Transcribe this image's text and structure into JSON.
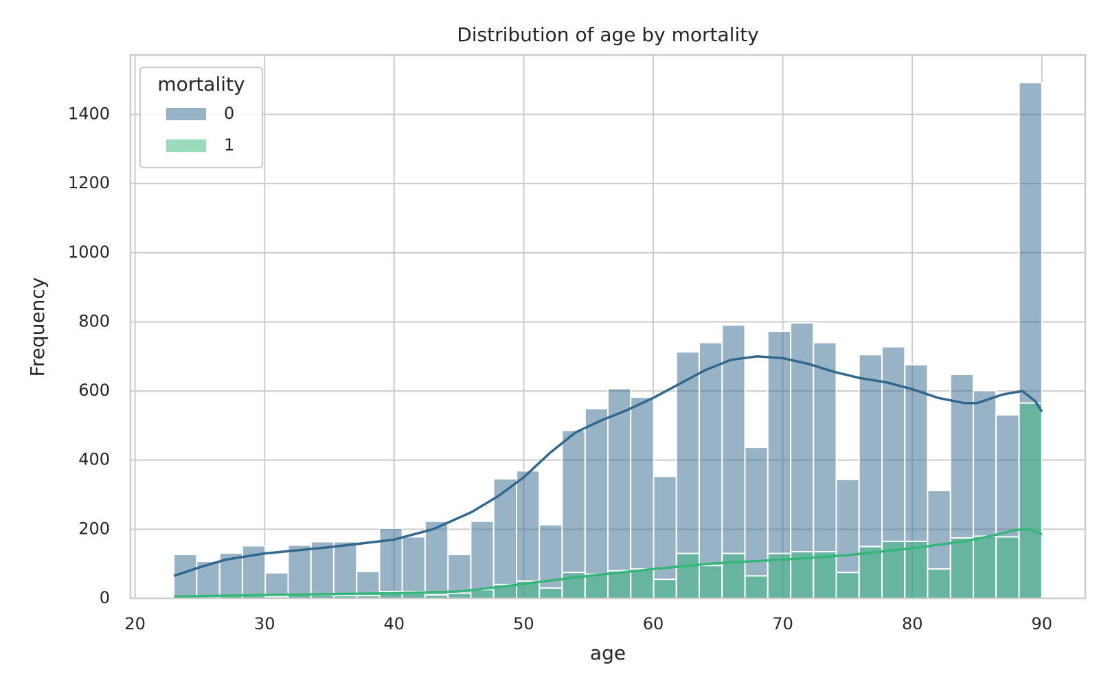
{
  "chart_data": {
    "type": "histogram",
    "title": "Distribution of age by mortality",
    "x_label": "age",
    "y_label": "Frequency",
    "legend_title": "mortality",
    "legend_position": "upper left",
    "grid": true,
    "xlim": [
      19.65,
      93.35
    ],
    "ylim": [
      0,
      1572
    ],
    "xticks": [
      20,
      30,
      40,
      50,
      60,
      70,
      80,
      90
    ],
    "yticks": [
      0,
      200,
      400,
      600,
      800,
      1000,
      1200,
      1400
    ],
    "bins": [
      23,
      24.76,
      26.53,
      28.29,
      30.05,
      31.82,
      33.58,
      35.34,
      37.11,
      38.87,
      40.63,
      42.39,
      44.16,
      45.92,
      47.68,
      49.45,
      51.21,
      52.97,
      54.74,
      56.5,
      58.26,
      60.03,
      61.79,
      63.55,
      65.32,
      67.08,
      68.84,
      70.61,
      72.37,
      74.13,
      75.89,
      77.66,
      79.42,
      81.18,
      82.95,
      84.71,
      86.47,
      88.24,
      90
    ],
    "series": [
      {
        "name": "0",
        "color": "#31688e",
        "values": [
          127,
          107,
          131,
          152,
          74,
          154,
          164,
          164,
          78,
          203,
          178,
          223,
          127,
          223,
          346,
          369,
          213,
          486,
          549,
          607,
          582,
          353,
          713,
          740,
          791,
          437,
          773,
          797,
          740,
          344,
          705,
          728,
          676,
          312,
          648,
          601,
          531,
          1492
        ],
        "kde": {
          "x": [
            23,
            25,
            27,
            30,
            35,
            40,
            43,
            46,
            48,
            50,
            52,
            54,
            56,
            58,
            60,
            62,
            64,
            66,
            68,
            70,
            72,
            74,
            76,
            78,
            80,
            82,
            84,
            85,
            87,
            88.5,
            89.5,
            90
          ],
          "values": [
            65,
            90,
            112,
            130,
            148,
            170,
            200,
            250,
            295,
            350,
            420,
            480,
            515,
            545,
            580,
            620,
            660,
            690,
            700,
            695,
            678,
            655,
            637,
            625,
            605,
            580,
            565,
            565,
            590,
            600,
            570,
            540
          ]
        }
      },
      {
        "name": "1",
        "color": "#35b779",
        "values": [
          5,
          5,
          8,
          8,
          5,
          10,
          10,
          8,
          8,
          20,
          20,
          10,
          15,
          25,
          40,
          50,
          30,
          75,
          70,
          80,
          85,
          55,
          130,
          95,
          130,
          65,
          130,
          135,
          135,
          75,
          150,
          165,
          165,
          85,
          175,
          180,
          178,
          565
        ],
        "kde": {
          "x": [
            23,
            30,
            40,
            45,
            47,
            50,
            55,
            60,
            62,
            65,
            70,
            75,
            80,
            84,
            86,
            88,
            89,
            90
          ],
          "values": [
            5,
            10,
            15,
            20,
            28,
            42,
            65,
            85,
            92,
            102,
            112,
            125,
            145,
            165,
            180,
            198,
            200,
            185
          ]
        }
      }
    ]
  }
}
